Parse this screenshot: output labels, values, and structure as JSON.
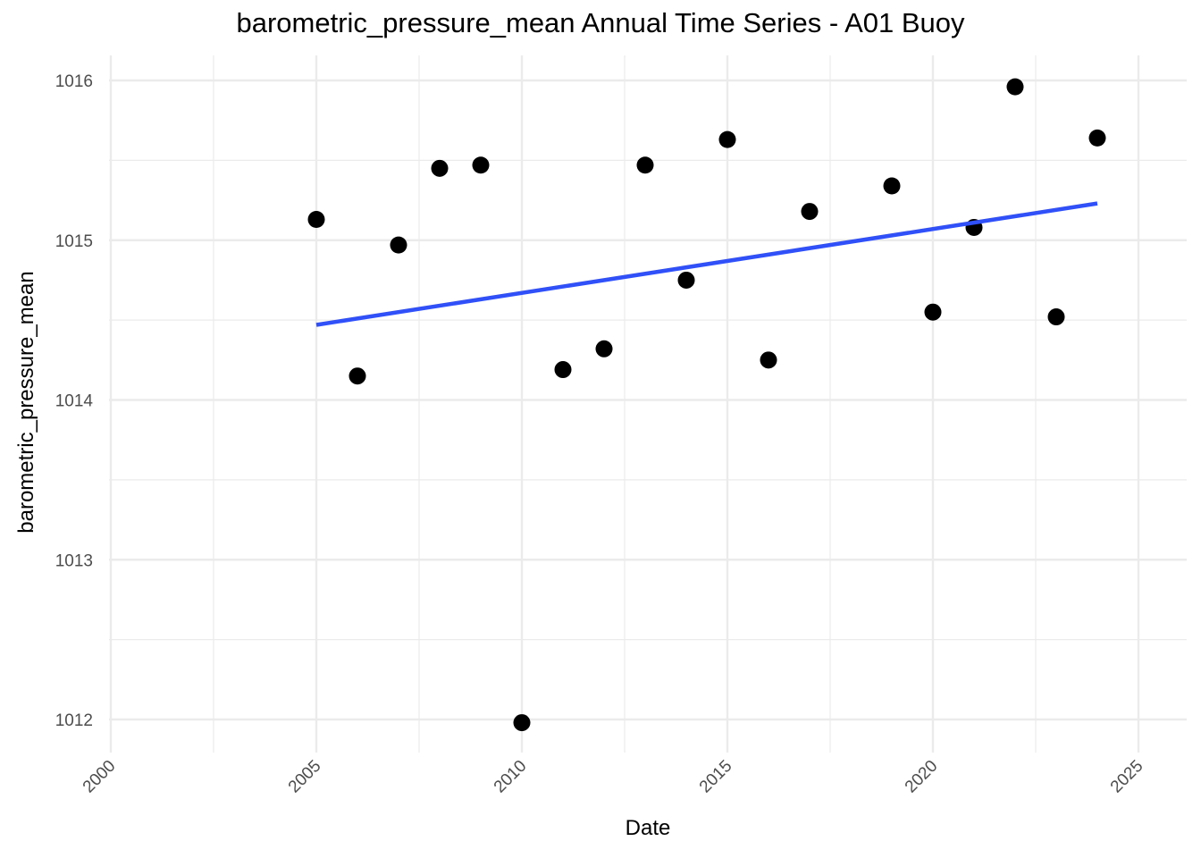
{
  "chart_data": {
    "type": "scatter",
    "title": "barometric_pressure_mean Annual Time Series - A01 Buoy",
    "xlabel": "Date",
    "ylabel": "barometric_pressure_mean",
    "x_ticks": [
      "2000",
      "2005",
      "2010",
      "2015",
      "2020",
      "2025"
    ],
    "y_ticks": [
      "1012",
      "1013",
      "1014",
      "1015",
      "1016"
    ],
    "xlim": [
      "1999-07-01",
      "2026-07-01"
    ],
    "ylim": [
      1011.85,
      1016.15
    ],
    "grid": true,
    "series": [
      {
        "points": [
          {
            "x": 2005,
            "y": 1015.13
          },
          {
            "x": 2006,
            "y": 1014.15
          },
          {
            "x": 2007,
            "y": 1014.97
          },
          {
            "x": 2008,
            "y": 1015.45
          },
          {
            "x": 2009,
            "y": 1015.47
          },
          {
            "x": 2010,
            "y": 1011.98
          },
          {
            "x": 2011,
            "y": 1014.19
          },
          {
            "x": 2012,
            "y": 1014.32
          },
          {
            "x": 2013,
            "y": 1015.47
          },
          {
            "x": 2014,
            "y": 1014.75
          },
          {
            "x": 2015,
            "y": 1015.63
          },
          {
            "x": 2016,
            "y": 1014.25
          },
          {
            "x": 2017,
            "y": 1015.18
          },
          {
            "x": 2019,
            "y": 1015.34
          },
          {
            "x": 2020,
            "y": 1014.55
          },
          {
            "x": 2021,
            "y": 1015.08
          },
          {
            "x": 2022,
            "y": 1015.96
          },
          {
            "x": 2023,
            "y": 1014.52
          },
          {
            "x": 2024,
            "y": 1015.64
          }
        ],
        "color": "#000000"
      }
    ],
    "trend_line": {
      "method": "linear",
      "start": {
        "x": 2005,
        "y": 1014.47
      },
      "end": {
        "x": 2024,
        "y": 1015.23
      },
      "color": "#3050f8"
    }
  },
  "colors": {
    "grid": "#ebebeb",
    "tick_text": "#4d4d4d",
    "points": "#000000",
    "trend": "#3050f8"
  }
}
